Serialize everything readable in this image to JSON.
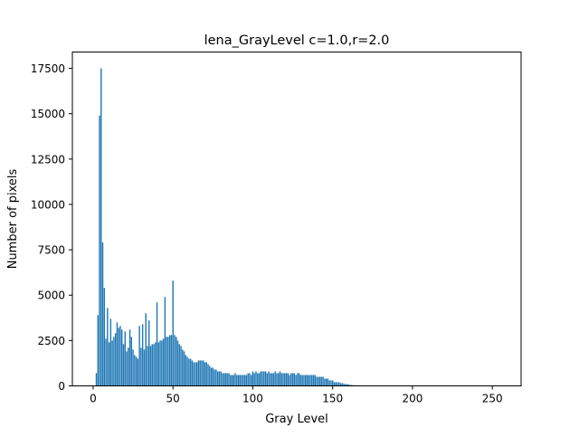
{
  "chart_data": {
    "type": "bar",
    "title": "lena_GrayLevel c=1.0,r=2.0",
    "xlabel": "Gray Level",
    "ylabel": "Number of pixels",
    "xlim": [
      -13,
      268
    ],
    "ylim": [
      0,
      18400
    ],
    "xticks": [
      0,
      50,
      100,
      150,
      200,
      250
    ],
    "yticks": [
      0,
      2500,
      5000,
      7500,
      10000,
      12500,
      15000,
      17500
    ],
    "bar_color": "#1f77b4",
    "grid": false,
    "x": [
      2,
      3,
      4,
      5,
      6,
      7,
      8,
      9,
      10,
      11,
      12,
      13,
      14,
      15,
      16,
      17,
      18,
      19,
      20,
      21,
      22,
      23,
      24,
      25,
      26,
      27,
      28,
      29,
      30,
      31,
      32,
      33,
      34,
      35,
      36,
      37,
      38,
      39,
      40,
      41,
      42,
      43,
      44,
      45,
      46,
      47,
      48,
      49,
      50,
      51,
      52,
      53,
      54,
      55,
      56,
      57,
      58,
      59,
      60,
      61,
      62,
      63,
      64,
      65,
      66,
      67,
      68,
      69,
      70,
      71,
      72,
      73,
      74,
      75,
      76,
      77,
      78,
      79,
      80,
      81,
      82,
      83,
      84,
      85,
      86,
      87,
      88,
      89,
      90,
      91,
      92,
      93,
      94,
      95,
      96,
      97,
      98,
      99,
      100,
      101,
      102,
      103,
      104,
      105,
      106,
      107,
      108,
      109,
      110,
      111,
      112,
      113,
      114,
      115,
      116,
      117,
      118,
      119,
      120,
      121,
      122,
      123,
      124,
      125,
      126,
      127,
      128,
      129,
      130,
      131,
      132,
      133,
      134,
      135,
      136,
      137,
      138,
      139,
      140,
      141,
      142,
      143,
      144,
      145,
      146,
      147,
      148,
      149,
      150,
      151,
      152,
      153,
      154,
      155,
      156,
      157,
      158,
      159,
      160,
      161,
      162,
      163,
      164,
      165,
      166,
      167,
      168,
      169,
      170
    ],
    "values": [
      700,
      3900,
      14900,
      17500,
      7900,
      5400,
      2600,
      4300,
      2400,
      3700,
      2500,
      2700,
      2900,
      3500,
      3200,
      3300,
      3100,
      2300,
      3000,
      1900,
      2100,
      3100,
      2700,
      2000,
      1700,
      1600,
      1500,
      3300,
      2100,
      3400,
      2000,
      4000,
      2200,
      3600,
      2200,
      2300,
      2300,
      2400,
      4600,
      2400,
      2500,
      2500,
      2600,
      4900,
      2700,
      2700,
      2800,
      2800,
      5800,
      2800,
      2700,
      2500,
      2300,
      2200,
      2000,
      1900,
      1700,
      1600,
      1500,
      1500,
      1400,
      1300,
      1300,
      1300,
      1400,
      1400,
      1400,
      1400,
      1300,
      1300,
      1200,
      1100,
      1000,
      1000,
      900,
      900,
      800,
      800,
      800,
      700,
      700,
      700,
      700,
      700,
      600,
      600,
      600,
      700,
      600,
      600,
      600,
      600,
      600,
      600,
      600,
      700,
      700,
      600,
      800,
      700,
      800,
      700,
      700,
      800,
      800,
      800,
      800,
      700,
      800,
      700,
      700,
      700,
      800,
      700,
      700,
      800,
      700,
      700,
      700,
      700,
      700,
      600,
      700,
      700,
      700,
      600,
      700,
      700,
      600,
      600,
      600,
      600,
      600,
      600,
      600,
      600,
      600,
      600,
      500,
      500,
      500,
      500,
      500,
      400,
      400,
      400,
      300,
      300,
      300,
      200,
      200,
      200,
      200,
      150,
      150,
      120,
      100,
      100,
      80,
      60,
      50,
      40,
      30,
      30,
      20,
      20,
      10,
      10,
      5
    ]
  }
}
